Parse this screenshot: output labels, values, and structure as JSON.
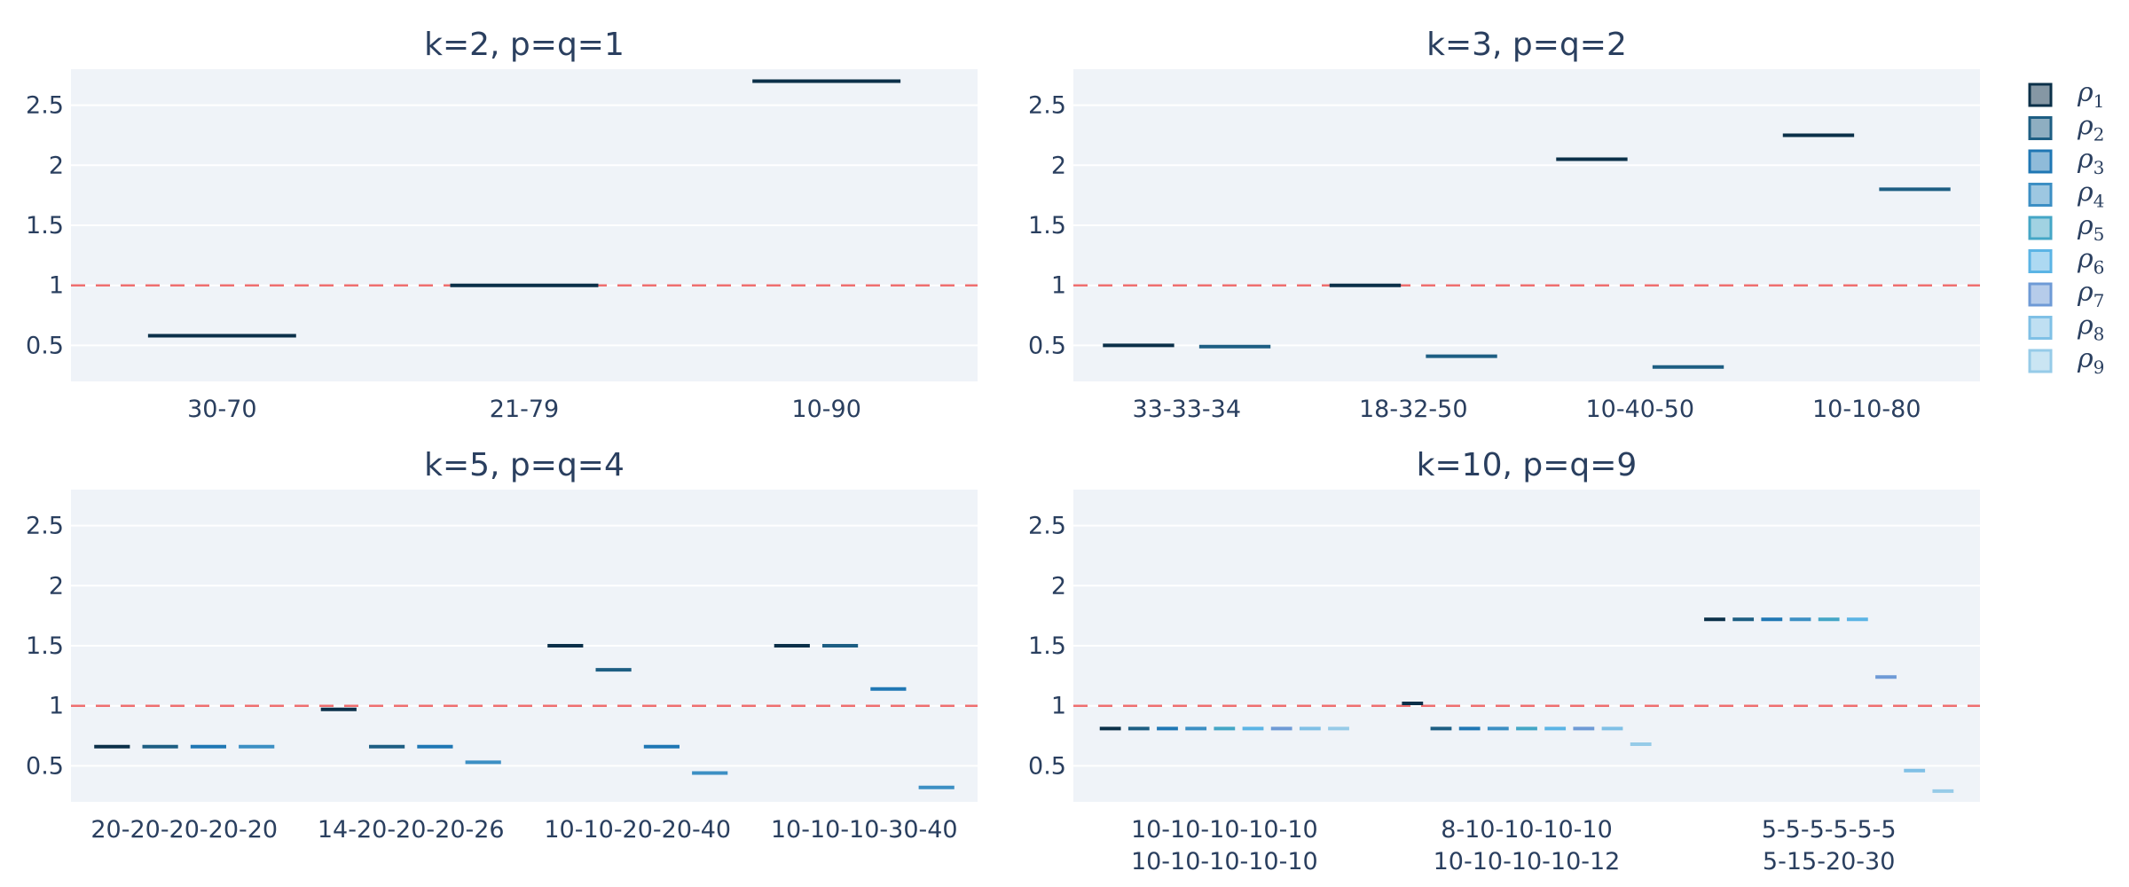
{
  "legend": {
    "items": [
      {
        "label": "ρ1",
        "base": "ρ",
        "sub": "1",
        "color": "#0b3049"
      },
      {
        "label": "ρ2",
        "base": "ρ",
        "sub": "2",
        "color": "#1d5e83"
      },
      {
        "label": "ρ3",
        "base": "ρ",
        "sub": "3",
        "color": "#1f77b4"
      },
      {
        "label": "ρ4",
        "base": "ρ",
        "sub": "4",
        "color": "#3c8fc4"
      },
      {
        "label": "ρ5",
        "base": "ρ",
        "sub": "5",
        "color": "#44a6c6"
      },
      {
        "label": "ρ6",
        "base": "ρ",
        "sub": "6",
        "color": "#5bb4e5"
      },
      {
        "label": "ρ7",
        "base": "ρ",
        "sub": "7",
        "color": "#6e9ad6"
      },
      {
        "label": "ρ8",
        "base": "ρ",
        "sub": "8",
        "color": "#7fc0e6"
      },
      {
        "label": "ρ9",
        "base": "ρ",
        "sub": "9",
        "color": "#96cbe8"
      }
    ]
  },
  "reference_line": {
    "y": 1,
    "color": "#ef6f6f",
    "style": "dashed"
  },
  "colors": {
    "plot_bg": "#eff3f8",
    "grid": "#ffffff",
    "text": "#2a3f5f"
  },
  "chart_data": [
    {
      "type": "scatter",
      "title": "k=2, p=q=1",
      "categories": [
        [
          "30-70"
        ],
        [
          "21-79"
        ],
        [
          "10-90"
        ]
      ],
      "ylim": [
        0.2,
        2.8
      ],
      "yticks": [
        0.5,
        1,
        1.5,
        2,
        2.5
      ],
      "ytick_labels": [
        "0.5",
        "1",
        "1.5",
        "2",
        "2.5"
      ],
      "series": [
        {
          "name": "ρ1",
          "values": [
            0.58,
            1.0,
            2.7
          ]
        }
      ]
    },
    {
      "type": "scatter",
      "title": "k=3, p=q=2",
      "categories": [
        [
          "33-33-34"
        ],
        [
          "18-32-50"
        ],
        [
          "10-40-50"
        ],
        [
          "10-10-80"
        ]
      ],
      "ylim": [
        0.2,
        2.8
      ],
      "yticks": [
        0.5,
        1,
        1.5,
        2,
        2.5
      ],
      "ytick_labels": [
        "0.5",
        "1",
        "1.5",
        "2",
        "2.5"
      ],
      "series": [
        {
          "name": "ρ1",
          "values": [
            0.5,
            1.0,
            2.05,
            2.25
          ]
        },
        {
          "name": "ρ2",
          "values": [
            0.49,
            0.41,
            0.32,
            1.8
          ]
        }
      ]
    },
    {
      "type": "scatter",
      "title": "k=5, p=q=4",
      "categories": [
        [
          "20-20-20-20-20"
        ],
        [
          "14-20-20-20-26"
        ],
        [
          "10-10-20-20-40"
        ],
        [
          "10-10-10-30-40"
        ]
      ],
      "ylim": [
        0.2,
        2.8
      ],
      "yticks": [
        0.5,
        1,
        1.5,
        2,
        2.5
      ],
      "ytick_labels": [
        "0.5",
        "1",
        "1.5",
        "2",
        "2.5"
      ],
      "series": [
        {
          "name": "ρ1",
          "values": [
            0.66,
            0.97,
            1.5,
            1.5
          ]
        },
        {
          "name": "ρ2",
          "values": [
            0.66,
            0.66,
            1.3,
            1.5
          ]
        },
        {
          "name": "ρ3",
          "values": [
            0.66,
            0.66,
            0.66,
            1.14
          ]
        },
        {
          "name": "ρ4",
          "values": [
            0.66,
            0.53,
            0.44,
            0.32
          ]
        }
      ]
    },
    {
      "type": "scatter",
      "title": "k=10, p=q=9",
      "categories": [
        [
          "10-10-10-10-10",
          "10-10-10-10-10"
        ],
        [
          "8-10-10-10-10",
          "10-10-10-10-12"
        ],
        [
          "5-5-5-5-5-5",
          "5-15-20-30"
        ]
      ],
      "ylim": [
        0.2,
        2.8
      ],
      "yticks": [
        0.5,
        1,
        1.5,
        2,
        2.5
      ],
      "ytick_labels": [
        "0.5",
        "1",
        "1.5",
        "2",
        "2.5"
      ],
      "series": [
        {
          "name": "ρ1",
          "values": [
            0.81,
            1.02,
            1.72
          ]
        },
        {
          "name": "ρ2",
          "values": [
            0.81,
            0.81,
            1.72
          ]
        },
        {
          "name": "ρ3",
          "values": [
            0.81,
            0.81,
            1.72
          ]
        },
        {
          "name": "ρ4",
          "values": [
            0.81,
            0.81,
            1.72
          ]
        },
        {
          "name": "ρ5",
          "values": [
            0.81,
            0.81,
            1.72
          ]
        },
        {
          "name": "ρ6",
          "values": [
            0.81,
            0.81,
            1.72
          ]
        },
        {
          "name": "ρ7",
          "values": [
            0.81,
            0.81,
            1.24
          ]
        },
        {
          "name": "ρ8",
          "values": [
            0.81,
            0.81,
            0.46
          ]
        },
        {
          "name": "ρ9",
          "values": [
            0.81,
            0.68,
            0.29
          ]
        }
      ]
    }
  ]
}
